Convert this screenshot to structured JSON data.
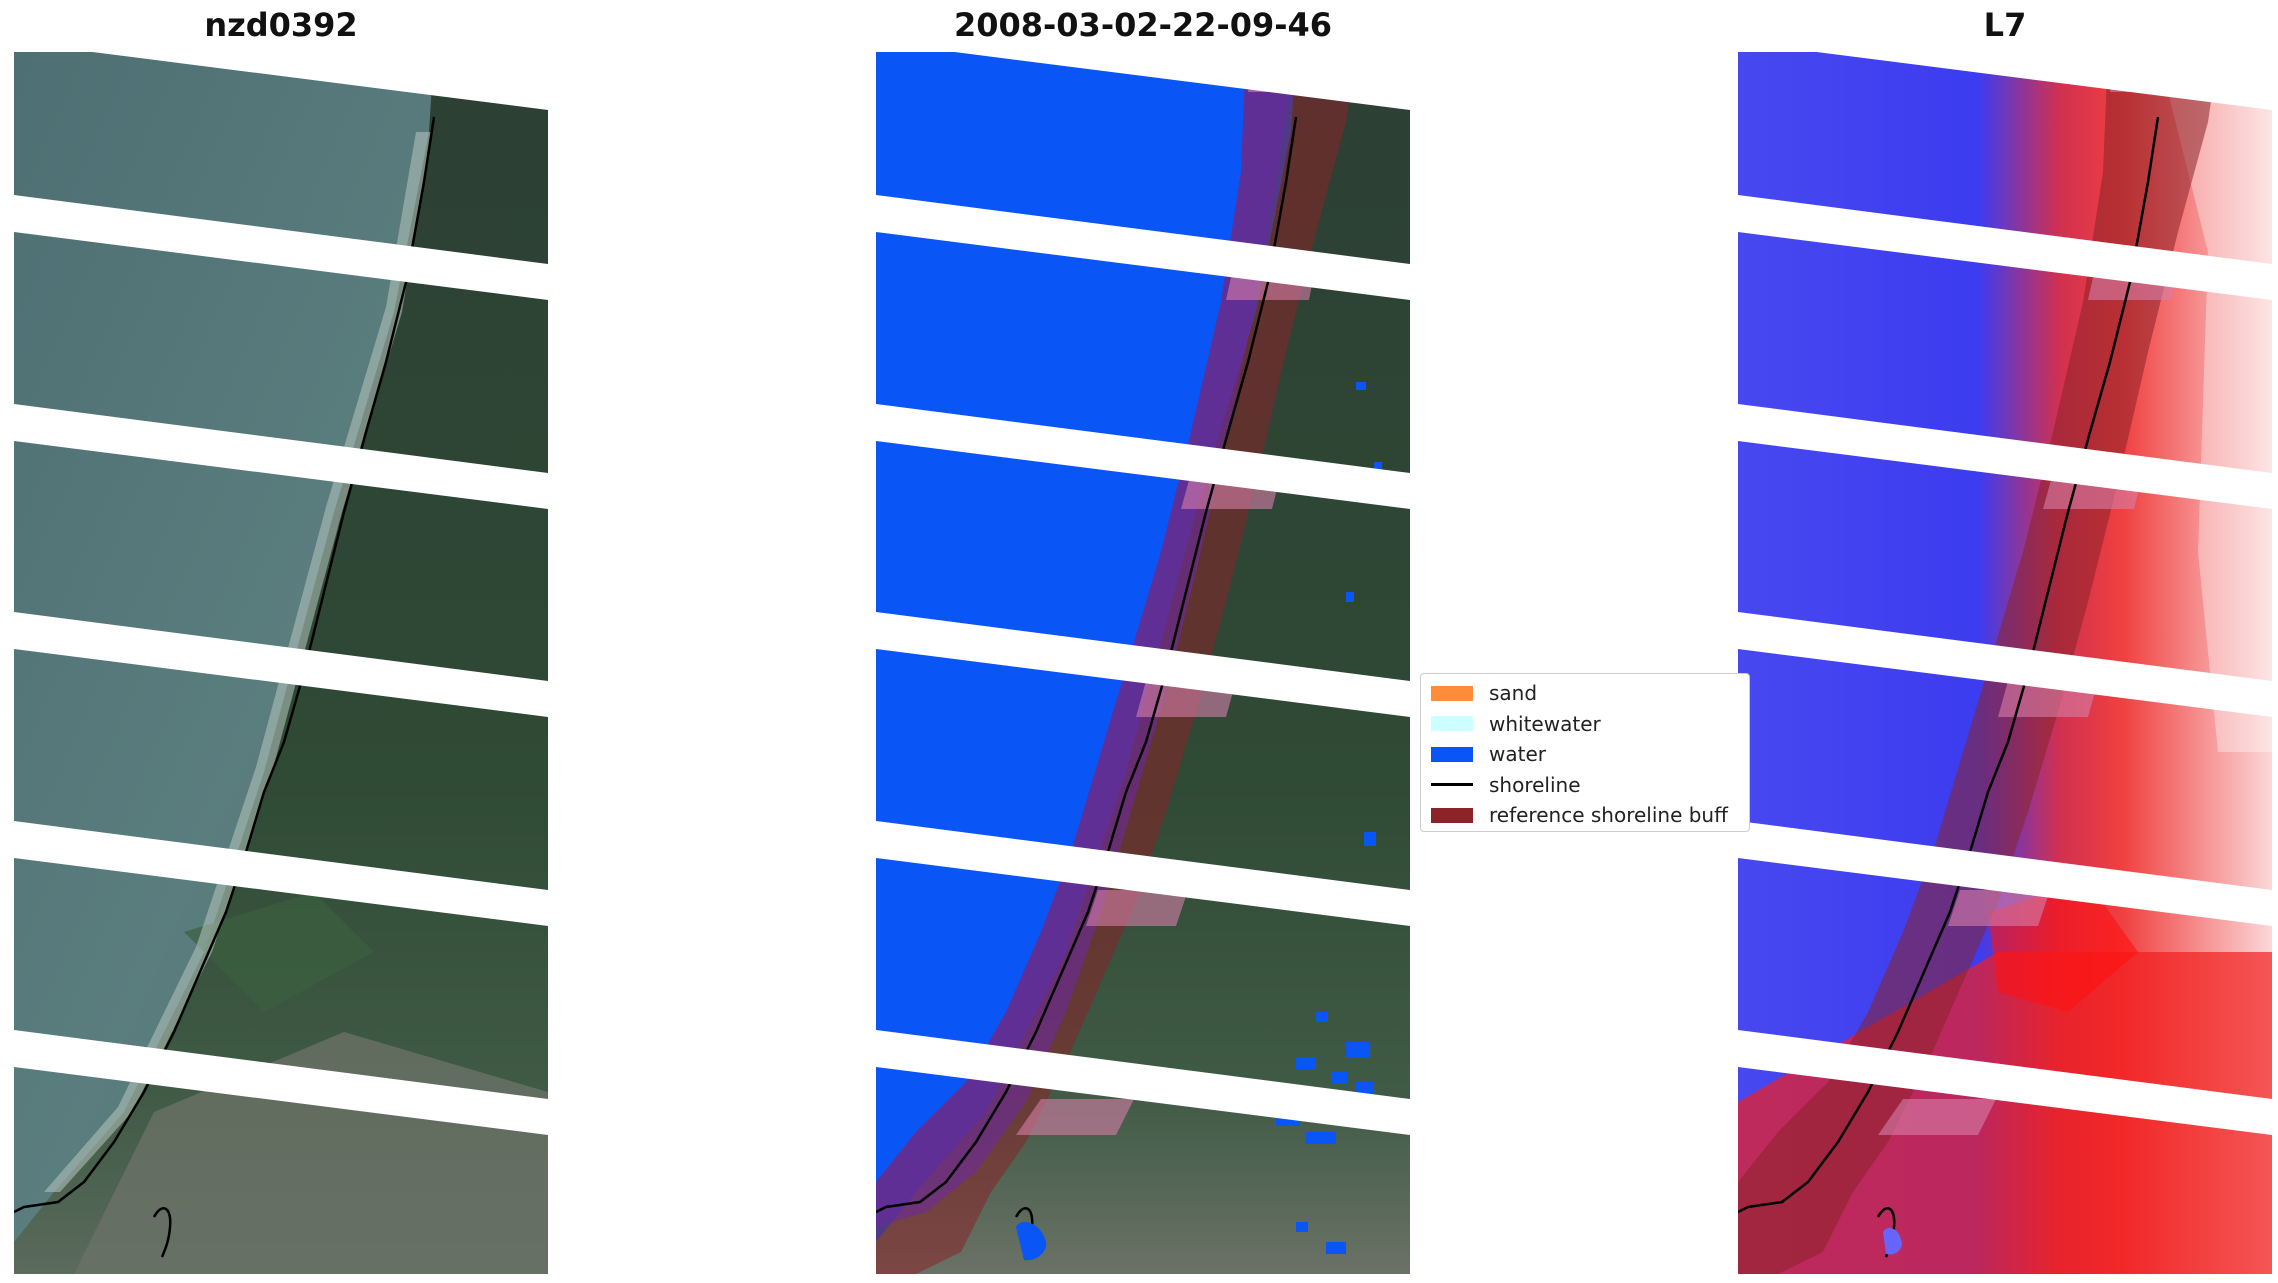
{
  "titles": {
    "left": "nzd0392",
    "center": "2008-03-02-22-09-46",
    "right": "L7"
  },
  "legend": {
    "items": [
      {
        "label": "sand",
        "color": "#ff8c3a",
        "kind": "patch"
      },
      {
        "label": "whitewater",
        "color": "#ccffff",
        "kind": "patch"
      },
      {
        "label": "water",
        "color": "#0a55f5",
        "kind": "patch"
      },
      {
        "label": "shoreline",
        "color": "#000000",
        "kind": "line"
      },
      {
        "label": "reference shoreline buff",
        "color": "#8b2328",
        "kind": "patch"
      }
    ]
  },
  "colors": {
    "ocean": "#4b6e71",
    "land": "#2f4a35",
    "water_class": "#0a55f5",
    "buffer": "#8b2328",
    "index_water": "#3c3cf0",
    "index_land": "#f02828",
    "gap": "#ffffff",
    "shoreline": "#000000"
  }
}
